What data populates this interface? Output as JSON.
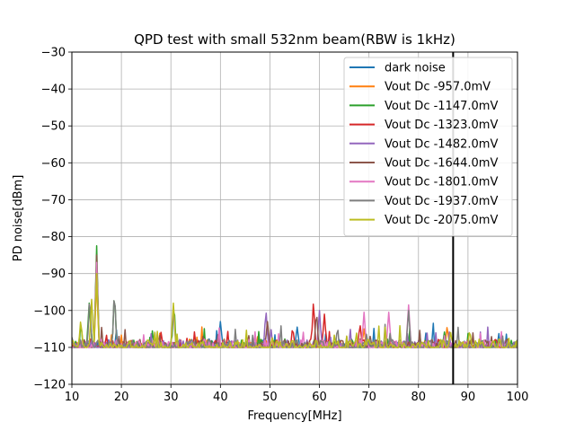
{
  "chart_data": {
    "type": "line",
    "title": "QPD test with small 532nm beam(RBW is 1kHz)",
    "xlabel": "Frequency[MHz]",
    "ylabel": "PD noise[dBm]",
    "xlim": [
      10,
      100
    ],
    "ylim": [
      -120,
      -30
    ],
    "xticks": [
      10,
      20,
      30,
      40,
      50,
      60,
      70,
      80,
      90,
      100
    ],
    "yticks": [
      -30,
      -40,
      -50,
      -60,
      -70,
      -80,
      -90,
      -100,
      -110,
      -120
    ],
    "xtick_labels": [
      "10",
      "20",
      "30",
      "40",
      "50",
      "60",
      "70",
      "80",
      "90",
      "100"
    ],
    "ytick_labels": [
      "−30",
      "−40",
      "−50",
      "−60",
      "−70",
      "−80",
      "−90",
      "−100",
      "−110",
      "−120"
    ],
    "grid": true,
    "legend_position": "top-right",
    "vline_x": 87,
    "vline_color": "#000000",
    "x_step": 0.25,
    "baseline_db": -110,
    "series": [
      {
        "name": "dark noise",
        "color": "#1f77b4",
        "peaks": [
          [
            40,
            -103
          ],
          [
            55.5,
            -104.5
          ]
        ]
      },
      {
        "name": "Vout Dc -957.0mV",
        "color": "#ff7f0e",
        "peaks": [
          [
            15,
            -92
          ],
          [
            85.8,
            -104.5
          ],
          [
            69,
            -105
          ]
        ]
      },
      {
        "name": "Vout Dc -1147.0mV",
        "color": "#2ca02c",
        "peaks": [
          [
            15,
            -82.5
          ],
          [
            18.6,
            -96
          ],
          [
            13.5,
            -98
          ],
          [
            30.6,
            -99
          ]
        ]
      },
      {
        "name": "Vout Dc -1323.0mV",
        "color": "#d62728",
        "peaks": [
          [
            58.8,
            -98
          ],
          [
            61,
            -101
          ],
          [
            68.2,
            -104
          ],
          [
            54.6,
            -105
          ]
        ]
      },
      {
        "name": "Vout Dc -1482.0mV",
        "color": "#9467bd",
        "peaks": [
          [
            49.2,
            -100.5
          ],
          [
            60,
            -100
          ],
          [
            30.5,
            -100
          ]
        ]
      },
      {
        "name": "Vout Dc -1644.0mV",
        "color": "#8c564b",
        "peaks": [
          [
            15,
            -85
          ],
          [
            59.4,
            -101
          ],
          [
            49.5,
            -103
          ]
        ]
      },
      {
        "name": "Vout Dc -1801.0mV",
        "color": "#e377c2",
        "peaks": [
          [
            78,
            -98.5
          ],
          [
            74,
            -100.5
          ],
          [
            69,
            -100.5
          ],
          [
            15,
            -87
          ]
        ]
      },
      {
        "name": "Vout Dc -1937.0mV",
        "color": "#7f7f7f",
        "peaks": [
          [
            18.6,
            -96
          ],
          [
            13.6,
            -97
          ],
          [
            78,
            -100
          ]
        ]
      },
      {
        "name": "Vout Dc -2075.0mV",
        "color": "#bcbd22",
        "peaks": [
          [
            30.5,
            -98
          ],
          [
            14,
            -97
          ],
          [
            86.5,
            -106
          ],
          [
            11.8,
            -103
          ],
          [
            15,
            -90
          ]
        ]
      }
    ]
  }
}
